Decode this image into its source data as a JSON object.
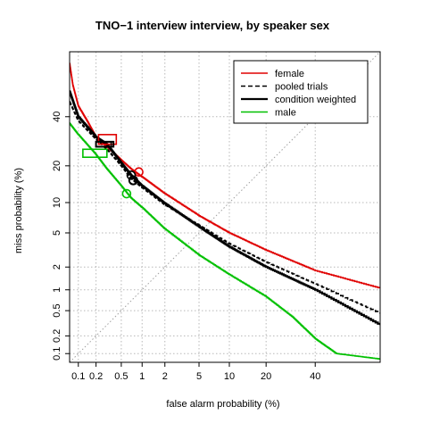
{
  "chart_data": {
    "type": "line",
    "plot_kind": "DET curve (normal deviate scale)",
    "title": "TNO−1 interview interview, by speaker sex",
    "xlabel": "false alarm probability (%)",
    "ylabel": "miss probability (%)",
    "xscale": "probit",
    "yscale": "probit",
    "xlim": [
      0.07,
      70
    ],
    "ylim": [
      0.07,
      70
    ],
    "xticks": [
      0.1,
      0.2,
      0.5,
      1,
      2,
      5,
      10,
      20,
      40
    ],
    "xtick_labels": [
      "0.1",
      "0.2",
      "0.5",
      "1",
      "2",
      "5",
      "10",
      "20",
      "40"
    ],
    "yticks": [
      0.1,
      0.2,
      0.5,
      1,
      2,
      5,
      10,
      20,
      40
    ],
    "ytick_labels": [
      "0.1",
      "0.2",
      "0.5",
      "1",
      "2",
      "5",
      "10",
      "20",
      "40"
    ],
    "grid": true,
    "diagonal": true,
    "legend_position": "top-right",
    "legend": [
      {
        "label": "female",
        "color": "#e00000",
        "dash": "solid"
      },
      {
        "label": "pooled trials",
        "color": "#000000",
        "dash": "dashed"
      },
      {
        "label": "condition weighted",
        "color": "#000000",
        "dash": "solid"
      },
      {
        "label": "male",
        "color": "#00c000",
        "dash": "solid"
      }
    ],
    "series": [
      {
        "name": "female",
        "color": "#e00000",
        "dash": "solid",
        "width": 1.6,
        "points": [
          [
            0.07,
            65
          ],
          [
            0.08,
            55
          ],
          [
            0.1,
            45
          ],
          [
            0.15,
            37
          ],
          [
            0.2,
            31
          ],
          [
            0.3,
            27
          ],
          [
            0.5,
            22
          ],
          [
            0.7,
            19
          ],
          [
            1,
            16.5
          ],
          [
            2,
            12
          ],
          [
            5,
            7.5
          ],
          [
            10,
            5
          ],
          [
            20,
            3.2
          ],
          [
            40,
            1.8
          ],
          [
            70,
            1.05
          ]
        ]
      },
      {
        "name": "pooled trials",
        "color": "#000000",
        "dash": "dashed",
        "width": 1.6,
        "points": [
          [
            0.07,
            47
          ],
          [
            0.1,
            38
          ],
          [
            0.2,
            30
          ],
          [
            0.3,
            26
          ],
          [
            0.5,
            20
          ],
          [
            0.7,
            16
          ],
          [
            1,
            13.5
          ],
          [
            2,
            9.5
          ],
          [
            5,
            6
          ],
          [
            10,
            3.8
          ],
          [
            20,
            2.3
          ],
          [
            40,
            1.2
          ],
          [
            70,
            0.45
          ]
        ]
      },
      {
        "name": "condition weighted",
        "color": "#000000",
        "dash": "solid",
        "width": 2.2,
        "points": [
          [
            0.07,
            52
          ],
          [
            0.1,
            40
          ],
          [
            0.2,
            31
          ],
          [
            0.3,
            28
          ],
          [
            0.5,
            21
          ],
          [
            0.7,
            17
          ],
          [
            1,
            14
          ],
          [
            2,
            9.8
          ],
          [
            5,
            5.8
          ],
          [
            10,
            3.5
          ],
          [
            20,
            2
          ],
          [
            40,
            1
          ],
          [
            70,
            0.3
          ]
        ]
      },
      {
        "name": "male",
        "color": "#00c000",
        "dash": "solid",
        "width": 1.6,
        "points": [
          [
            0.07,
            37
          ],
          [
            0.1,
            32
          ],
          [
            0.2,
            24
          ],
          [
            0.3,
            19
          ],
          [
            0.5,
            14
          ],
          [
            0.7,
            11
          ],
          [
            1,
            9
          ],
          [
            2,
            5.5
          ],
          [
            5,
            2.8
          ],
          [
            10,
            1.6
          ],
          [
            20,
            0.8
          ],
          [
            30,
            0.4
          ],
          [
            40,
            0.18
          ],
          [
            50,
            0.1
          ],
          [
            70,
            0.08
          ]
        ]
      }
    ],
    "markers": [
      {
        "series": "female",
        "shape": "circle",
        "x": 0.9,
        "y": 18
      },
      {
        "series": "female",
        "shape": "rectangle",
        "x0": 0.22,
        "x1": 0.42,
        "y0": 28,
        "y1": 32
      },
      {
        "series": "condition weighted",
        "shape": "circle",
        "x": 0.75,
        "y": 15.5
      },
      {
        "series": "condition weighted",
        "shape": "rectangle",
        "x0": 0.2,
        "x1": 0.38,
        "y0": 27,
        "y1": 29
      },
      {
        "series": "pooled trials",
        "shape": "circle",
        "x": 0.7,
        "y": 17
      },
      {
        "series": "pooled trials",
        "shape": "rectangle",
        "x0": 0.2,
        "x1": 0.35,
        "y0": 27,
        "y1": 29
      },
      {
        "series": "male",
        "shape": "circle",
        "x": 0.6,
        "y": 12
      },
      {
        "series": "male",
        "shape": "rectangle",
        "x0": 0.12,
        "x1": 0.3,
        "y0": 23,
        "y1": 26
      }
    ]
  }
}
